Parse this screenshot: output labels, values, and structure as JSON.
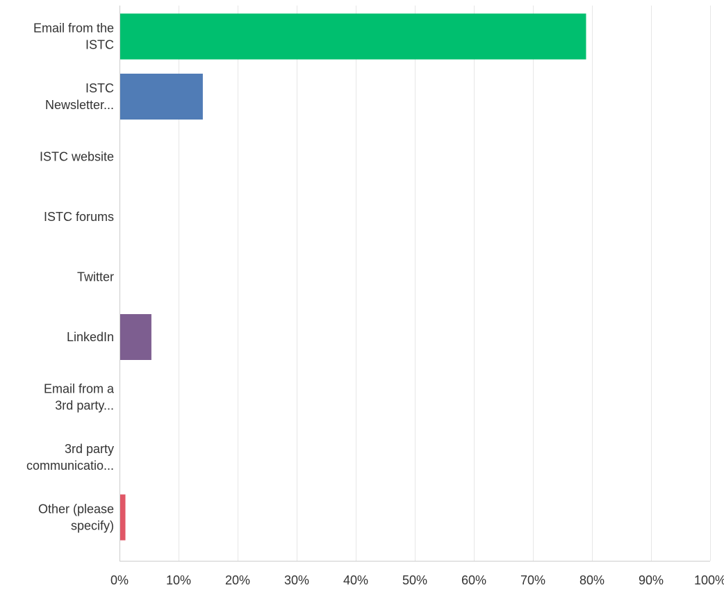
{
  "chart_data": {
    "type": "bar",
    "orientation": "horizontal",
    "categories": [
      [
        "Email from the",
        "ISTC"
      ],
      [
        "ISTC",
        "Newsletter..."
      ],
      [
        "ISTC website"
      ],
      [
        "ISTC forums"
      ],
      [
        "Twitter"
      ],
      [
        "LinkedIn"
      ],
      [
        "Email from a",
        "3rd party..."
      ],
      [
        "3rd party",
        "communicatio..."
      ],
      [
        "Other (please",
        "specify)"
      ]
    ],
    "values": [
      79.0,
      14.1,
      0,
      0,
      0,
      5.4,
      0,
      0,
      1.0
    ],
    "bar_colors": [
      "#00bf6f",
      "#507cb6",
      "#507cb6",
      "#507cb6",
      "#507cb6",
      "#7d5e90",
      "#7d5e90",
      "#7d5e90",
      "#e05666"
    ],
    "xlim": [
      0,
      100
    ],
    "x_ticks": [
      "0%",
      "10%",
      "20%",
      "30%",
      "40%",
      "50%",
      "60%",
      "70%",
      "80%",
      "90%",
      "100%"
    ],
    "x_tick_values": [
      0,
      10,
      20,
      30,
      40,
      50,
      60,
      70,
      80,
      90,
      100
    ],
    "grid": true,
    "grid_color": "#e6e6e6",
    "axis_color": "#cccccc",
    "legend": "none"
  }
}
